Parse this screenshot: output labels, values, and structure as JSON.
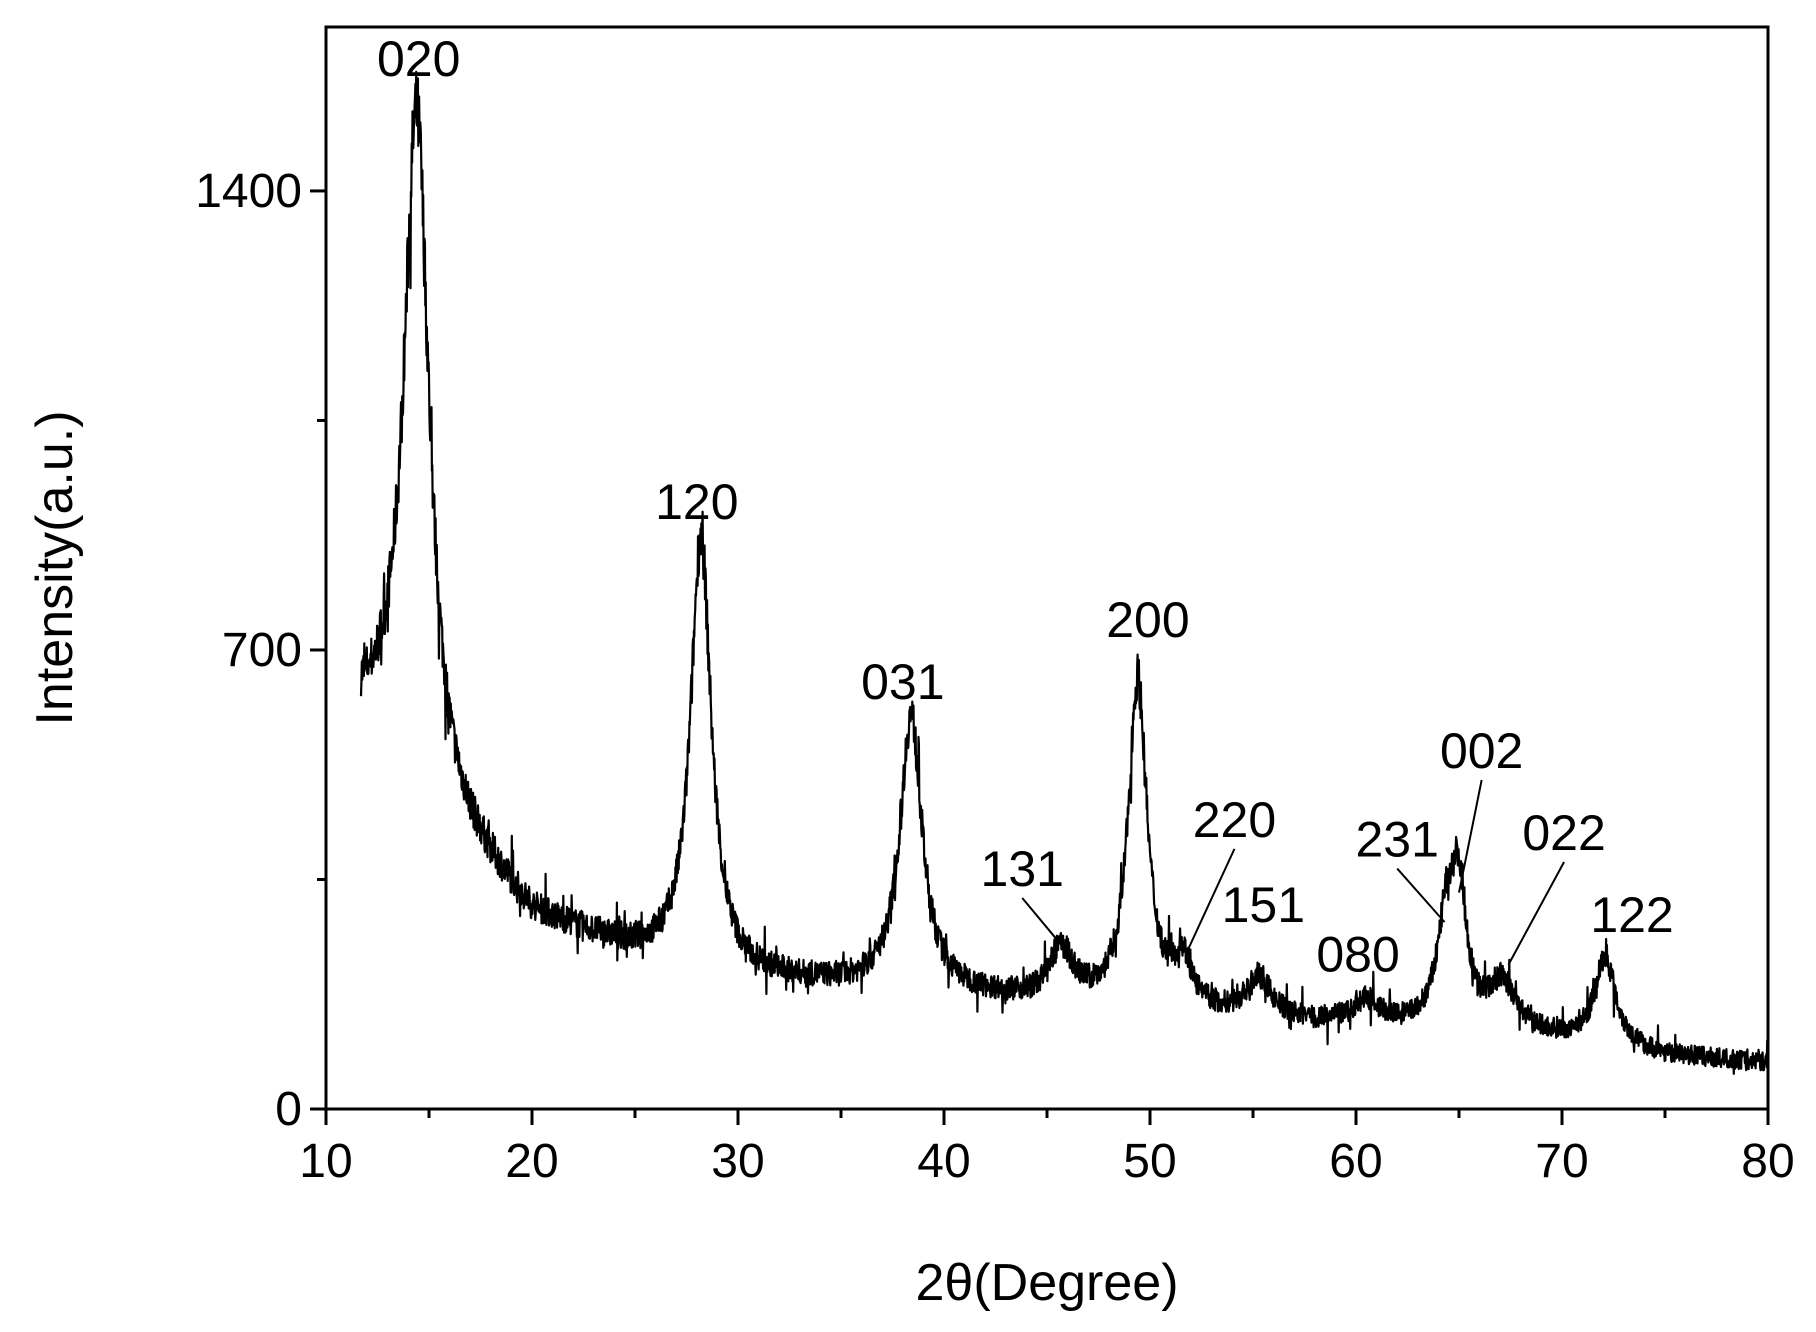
{
  "chart_data": {
    "type": "line",
    "xlabel": "2θ(Degree)",
    "ylabel": "Intensity(a.u.)",
    "xlim": [
      10,
      80
    ],
    "ylim": [
      0,
      1650
    ],
    "x_ticks": [
      10,
      20,
      30,
      40,
      50,
      60,
      70,
      80
    ],
    "y_ticks": [
      0,
      700,
      1400
    ],
    "grid": false,
    "legend": "none",
    "line_color": "#000000",
    "series": [
      {
        "x_range": [
          11.7,
          80
        ],
        "baseline": [
          [
            11.7,
            590
          ],
          [
            13,
            560
          ],
          [
            16,
            420
          ],
          [
            20,
            290
          ],
          [
            25,
            235
          ],
          [
            30,
            200
          ],
          [
            35,
            185
          ],
          [
            40,
            175
          ],
          [
            45,
            160
          ],
          [
            50,
            150
          ],
          [
            55,
            135
          ],
          [
            60,
            125
          ],
          [
            65,
            115
          ],
          [
            70,
            105
          ],
          [
            75,
            80
          ],
          [
            80,
            70
          ]
        ],
        "peaks": [
          {
            "x": 14.4,
            "y": 1520
          },
          {
            "x": 28.2,
            "y": 870
          },
          {
            "x": 38.4,
            "y": 595
          },
          {
            "x": 45.7,
            "y": 235
          },
          {
            "x": 49.4,
            "y": 650
          },
          {
            "x": 51.6,
            "y": 215
          },
          {
            "x": 55.3,
            "y": 195
          },
          {
            "x": 60.5,
            "y": 160
          },
          {
            "x": 64.4,
            "y": 270
          },
          {
            "x": 65.0,
            "y": 305
          },
          {
            "x": 67.1,
            "y": 185
          },
          {
            "x": 72.1,
            "y": 230
          }
        ]
      }
    ],
    "annotations": [
      {
        "text": "020",
        "x": 14.4,
        "y": 1520,
        "label_x": 14.5,
        "label_y": 1575
      },
      {
        "text": "120",
        "x": 28.2,
        "y": 870,
        "label_x": 28.0,
        "label_y": 900
      },
      {
        "text": "031",
        "x": 38.4,
        "y": 595,
        "label_x": 38.0,
        "label_y": 625
      },
      {
        "text": "131",
        "x": 45.7,
        "y": 250,
        "label_x": 43.8,
        "label_y": 340,
        "leader": true
      },
      {
        "text": "200",
        "x": 49.4,
        "y": 650,
        "label_x": 49.9,
        "label_y": 720
      },
      {
        "text": "220",
        "x": 51.8,
        "y": 240,
        "label_x": 54.1,
        "label_y": 415,
        "leader": true
      },
      {
        "text": "151",
        "x": 55.3,
        "y": 225,
        "label_x": 55.5,
        "label_y": 285
      },
      {
        "text": "080",
        "x": 60.5,
        "y": 175,
        "label_x": 60.1,
        "label_y": 210
      },
      {
        "text": "231",
        "x": 64.3,
        "y": 285,
        "label_x": 62.0,
        "label_y": 385,
        "leader": true
      },
      {
        "text": "002",
        "x": 65.0,
        "y": 330,
        "label_x": 66.1,
        "label_y": 520,
        "leader": true
      },
      {
        "text": "022",
        "x": 67.4,
        "y": 220,
        "label_x": 70.1,
        "label_y": 395,
        "leader": true
      },
      {
        "text": "122",
        "x": 72.1,
        "y": 245,
        "label_x": 73.4,
        "label_y": 270
      }
    ]
  }
}
